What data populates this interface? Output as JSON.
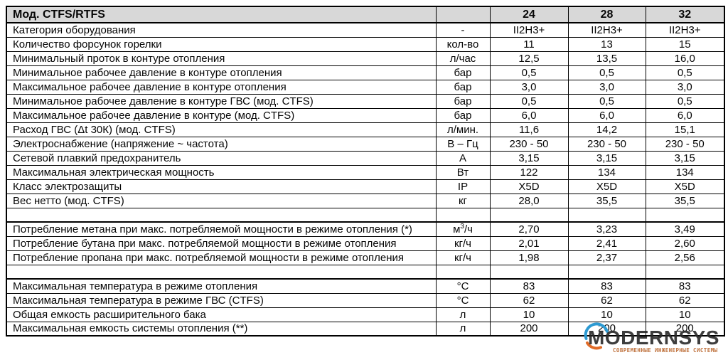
{
  "table": {
    "title": "Мод. CTFS/RTFS",
    "columns": [
      "24",
      "28",
      "32"
    ],
    "header_bg": "#d8d8d8",
    "border_color": "#000000",
    "rows": [
      {
        "label": "Категория оборудования",
        "unit": "-",
        "values": [
          "II2H3+",
          "II2H3+",
          "II2H3+"
        ]
      },
      {
        "label": "Количество форсунок горелки",
        "unit": "кол-во",
        "values": [
          "11",
          "13",
          "15"
        ]
      },
      {
        "label": "Минимальный проток в контуре отопления",
        "unit": "л/час",
        "values": [
          "12,5",
          "13,5",
          "16,0"
        ]
      },
      {
        "label": "Минимальное рабочее давление в контуре отопления",
        "unit": "бар",
        "values": [
          "0,5",
          "0,5",
          "0,5"
        ]
      },
      {
        "label": "Максимальное рабочее давление в контуре отопления",
        "unit": "бар",
        "values": [
          "3,0",
          "3,0",
          "3,0"
        ]
      },
      {
        "label": "Минимальное рабочее давление в контуре ГВС (мод. CTFS)",
        "unit": "бар",
        "values": [
          "0,5",
          "0,5",
          "0,5"
        ]
      },
      {
        "label": "Максимальное рабочее давление в контуре (мод. CTFS)",
        "unit": "бар",
        "values": [
          "6,0",
          "6,0",
          "6,0"
        ]
      },
      {
        "label": "Расход ГВС (Δt 30К) (мод. CTFS)",
        "unit": "л/мин.",
        "values": [
          "11,6",
          "14,2",
          "15,1"
        ]
      },
      {
        "label": "Электроснабжение (напряжение ~ частота)",
        "unit": "В – Гц",
        "values": [
          "230 - 50",
          "230 - 50",
          "230 - 50"
        ]
      },
      {
        "label": "Сетевой плавкий предохранитель",
        "unit": "А",
        "values": [
          "3,15",
          "3,15",
          "3,15"
        ]
      },
      {
        "label": "Максимальная электрическая мощность",
        "unit": "Вт",
        "values": [
          "122",
          "134",
          "134"
        ]
      },
      {
        "label": "Класс электрозащиты",
        "unit": "IP",
        "values": [
          "X5D",
          "X5D",
          "X5D"
        ]
      },
      {
        "label": "Вес нетто (мод. CTFS)",
        "unit": "кг",
        "values": [
          "28,0",
          "35,5",
          "35,5"
        ]
      },
      {
        "spacer": true
      },
      {
        "label": "Потребление метана при макс. потребляемой мощности в режиме отопления (*)",
        "unit": "м³/ч",
        "values": [
          "2,70",
          "3,23",
          "3,49"
        ]
      },
      {
        "label": "Потребление бутана при макс. потребляемой мощности в режиме отопления",
        "unit": "кг/ч",
        "values": [
          "2,01",
          "2,41",
          "2,60"
        ]
      },
      {
        "label": "Потребление пропана при макс. потребляемой мощности в режиме отопления",
        "unit": "кг/ч",
        "values": [
          "1,98",
          "2,37",
          "2,56"
        ]
      },
      {
        "spacer": true
      },
      {
        "label": "Максимальная температура в режиме отопления",
        "unit": "°С",
        "values": [
          "83",
          "83",
          "83"
        ]
      },
      {
        "label": "Максимальная температура в режиме ГВС (CTFS)",
        "unit": "°С",
        "values": [
          "62",
          "62",
          "62"
        ]
      },
      {
        "label": "Общая емкость расширительного бака",
        "unit": "л",
        "values": [
          "10",
          "10",
          "10"
        ]
      },
      {
        "label": "Максимальная емкость системы отопления (**)",
        "unit": "л",
        "values": [
          "200",
          "200",
          "200"
        ]
      }
    ]
  },
  "watermark": {
    "name": "MODERNSYS",
    "tagline": "СОВРЕМЕННЫЕ ИНЖЕНЕРНЫЕ СИСТЕМЫ",
    "name_color": "#282828",
    "tagline_color": "#ba6830",
    "circle_blue": "#2d9ad2",
    "circle_orange": "#e06b28"
  }
}
